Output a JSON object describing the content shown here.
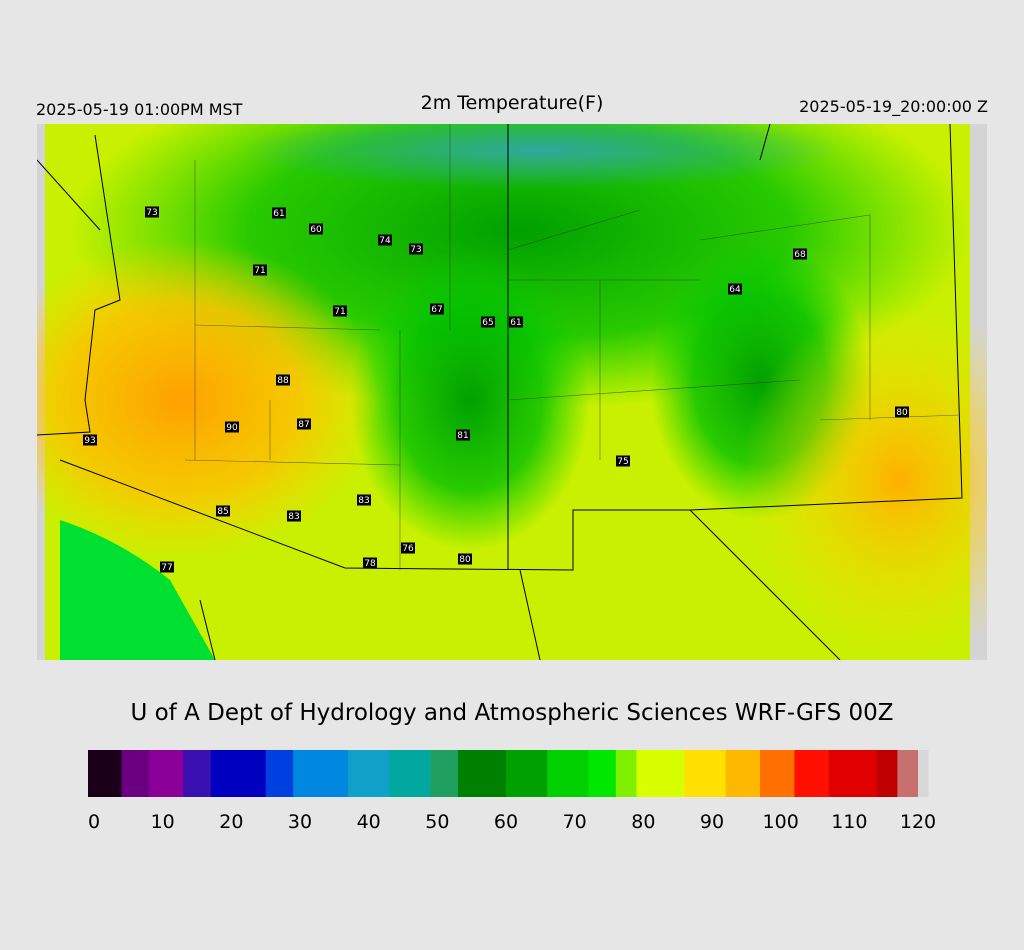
{
  "header": {
    "left": "2025-05-19 01:00PM MST",
    "title": "2m Temperature(F)",
    "right": "2025-05-19_20:00:00 Z"
  },
  "stations": [
    73,
    61,
    60,
    74,
    73,
    71,
    71,
    67,
    65,
    61,
    64,
    68,
    88,
    90,
    87,
    81,
    93,
    75,
    80,
    83,
    85,
    83,
    76,
    80,
    78,
    77
  ],
  "credit": "U of A Dept of Hydrology and Atmospheric Sciences WRF-GFS 00Z",
  "colorbar": {
    "range": [
      0,
      120
    ],
    "ticks": [
      0,
      10,
      20,
      30,
      40,
      50,
      60,
      70,
      80,
      90,
      100,
      110,
      120
    ],
    "stops": [
      {
        "value": 0,
        "color": "#1a0018"
      },
      {
        "value": 4,
        "color": "#6a0080"
      },
      {
        "value": 8,
        "color": "#8a0098"
      },
      {
        "value": 13,
        "color": "#3a10b0"
      },
      {
        "value": 17,
        "color": "#0000c0"
      },
      {
        "value": 25,
        "color": "#0040e0"
      },
      {
        "value": 29,
        "color": "#0088e0"
      },
      {
        "value": 37,
        "color": "#10a0c8"
      },
      {
        "value": 43,
        "color": "#00a8a0"
      },
      {
        "value": 49,
        "color": "#20a060"
      },
      {
        "value": 53,
        "color": "#008000"
      },
      {
        "value": 60,
        "color": "#00a000"
      },
      {
        "value": 66,
        "color": "#00d000"
      },
      {
        "value": 72,
        "color": "#00e800"
      },
      {
        "value": 76,
        "color": "#80f000"
      },
      {
        "value": 79,
        "color": "#d8ff00"
      },
      {
        "value": 86,
        "color": "#ffe000"
      },
      {
        "value": 92,
        "color": "#ffb800"
      },
      {
        "value": 97,
        "color": "#ff7000"
      },
      {
        "value": 102,
        "color": "#ff1000"
      },
      {
        "value": 107,
        "color": "#e00000"
      },
      {
        "value": 114,
        "color": "#c00000"
      },
      {
        "value": 117,
        "color": "#c87070"
      },
      {
        "value": 120,
        "color": "#d8d8d8"
      }
    ]
  }
}
